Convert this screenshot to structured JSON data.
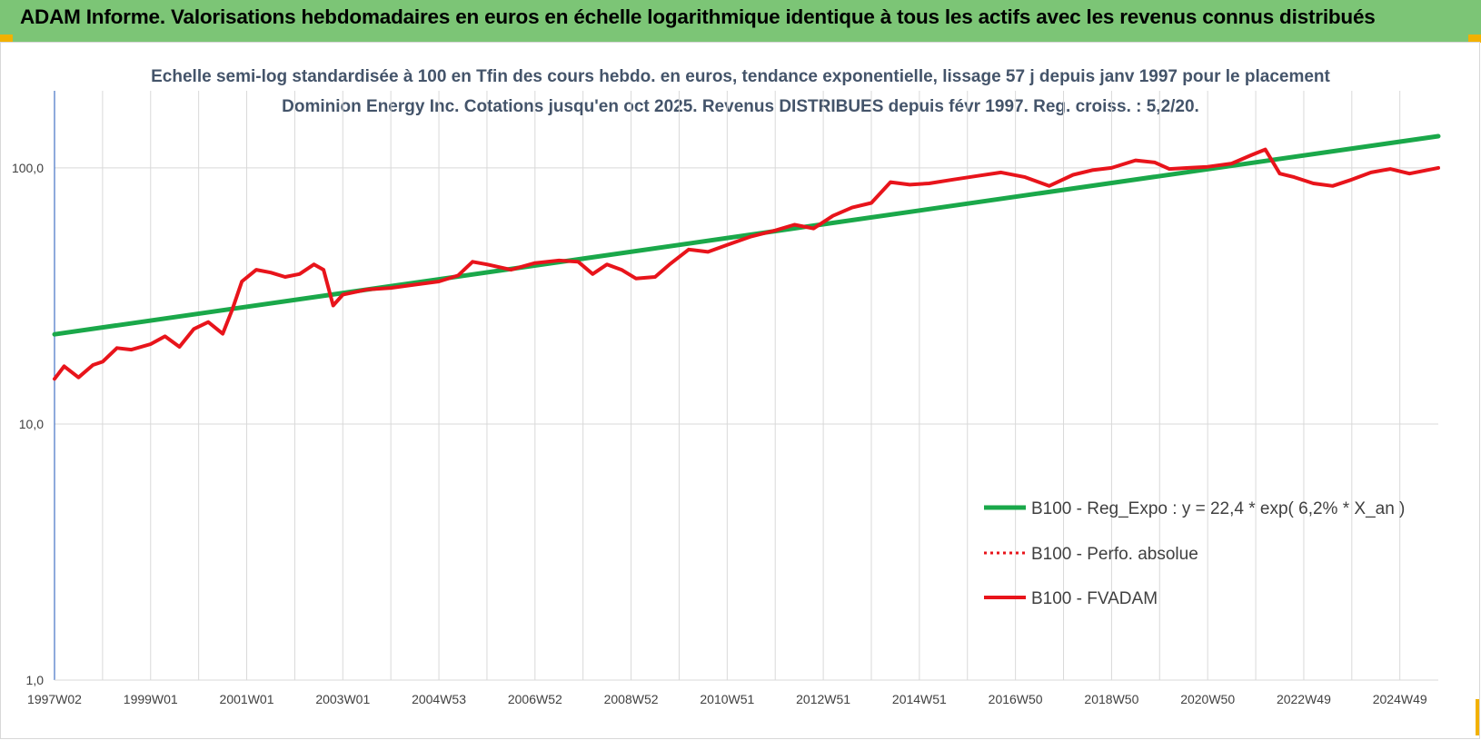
{
  "header": {
    "title": "ADAM Informe. Valorisations hebdomadaires en euros en échelle logarithmique identique à tous les actifs avec les revenus connus distribués"
  },
  "colors": {
    "banner": "#7cc576",
    "trend": "#1aa84a",
    "fvadam": "#e8141b",
    "perfo": "#e8141b",
    "accent": "#f2b100"
  },
  "chart_data": {
    "type": "line",
    "title": "Echelle semi-log standardisée à 100 en Tfin des cours hebdo. en euros, tendance exponentielle, lissage 57 j depuis janv 1997 pour le placement Dominion Energy Inc. Cotations jusqu'en oct 2025. Revenus DISTRIBUES depuis févr 1997. Reg. croiss. : 5,2/20.",
    "y_scale": "log",
    "ylim": [
      1,
      200
    ],
    "y_ticks": [
      1,
      10,
      100
    ],
    "y_tick_labels": [
      "1,0",
      "10,0",
      "100,0"
    ],
    "xlim": [
      1997.0,
      2025.8
    ],
    "x_tick_labels": [
      "1997W02",
      "1999W01",
      "2001W01",
      "2003W01",
      "2004W53",
      "2006W52",
      "2008W52",
      "2010W51",
      "2012W51",
      "2014W51",
      "2016W50",
      "2018W50",
      "2020W50",
      "2022W49",
      "2024W49"
    ],
    "x_tick_positions": [
      1997.0,
      1999.0,
      2001.0,
      2003.0,
      2005.0,
      2007.0,
      2009.0,
      2011.0,
      2013.0,
      2015.0,
      2017.0,
      2019.0,
      2021.0,
      2023.0,
      2025.0
    ],
    "grid": "vertical-and-horizontal",
    "legend_position": "bottom-right",
    "series": [
      {
        "name": "B100 - Reg_Expo : y = 22,4 * exp( 6,2% * X_an )",
        "style": "solid-thick",
        "x": [
          1997.0,
          2025.8
        ],
        "values": [
          22.4,
          133.0
        ]
      },
      {
        "name": "B100 - Perfo. absolue",
        "style": "dotted",
        "x": [],
        "values": []
      },
      {
        "name": "B100 - FVADAM",
        "style": "solid-thick",
        "x": [
          1997.0,
          1997.2,
          1997.5,
          1997.8,
          1998.0,
          1998.3,
          1998.6,
          1999.0,
          1999.3,
          1999.6,
          1999.9,
          2000.2,
          2000.5,
          2000.7,
          2000.9,
          2001.2,
          2001.5,
          2001.8,
          2002.1,
          2002.4,
          2002.6,
          2002.8,
          2003.0,
          2003.5,
          2004.0,
          2004.5,
          2005.0,
          2005.4,
          2005.7,
          2006.0,
          2006.5,
          2007.0,
          2007.5,
          2007.9,
          2008.2,
          2008.5,
          2008.8,
          2009.1,
          2009.5,
          2009.8,
          2010.2,
          2010.6,
          2011.0,
          2011.5,
          2012.0,
          2012.4,
          2012.8,
          2013.2,
          2013.6,
          2014.0,
          2014.4,
          2014.8,
          2015.2,
          2015.7,
          2016.2,
          2016.7,
          2017.2,
          2017.7,
          2018.2,
          2018.6,
          2019.0,
          2019.5,
          2019.9,
          2020.2,
          2020.6,
          2021.0,
          2021.5,
          2021.9,
          2022.2,
          2022.5,
          2022.8,
          2023.2,
          2023.6,
          2024.0,
          2024.4,
          2024.8,
          2025.2,
          2025.8
        ],
        "values": [
          15.0,
          16.8,
          15.2,
          17.0,
          17.5,
          19.8,
          19.5,
          20.5,
          22.0,
          20.0,
          23.5,
          25.0,
          22.5,
          28.0,
          36.0,
          40.0,
          39.0,
          37.5,
          38.5,
          42.0,
          40.0,
          29.0,
          32.0,
          33.5,
          34.0,
          35.0,
          36.0,
          38.0,
          43.0,
          42.0,
          40.0,
          42.5,
          43.5,
          43.0,
          38.5,
          42.0,
          40.0,
          37.0,
          37.5,
          42.0,
          48.0,
          47.0,
          50.0,
          54.0,
          57.0,
          60.0,
          58.0,
          65.0,
          70.0,
          73.0,
          88.0,
          86.0,
          87.0,
          90.0,
          93.0,
          96.0,
          92.0,
          85.0,
          94.0,
          98.0,
          100.0,
          107.0,
          105.0,
          99.0,
          100.0,
          101.0,
          104.0,
          112.0,
          118.0,
          95.0,
          92.0,
          87.0,
          85.0,
          90.0,
          96.0,
          99.0,
          95.0,
          100.0
        ]
      }
    ]
  }
}
